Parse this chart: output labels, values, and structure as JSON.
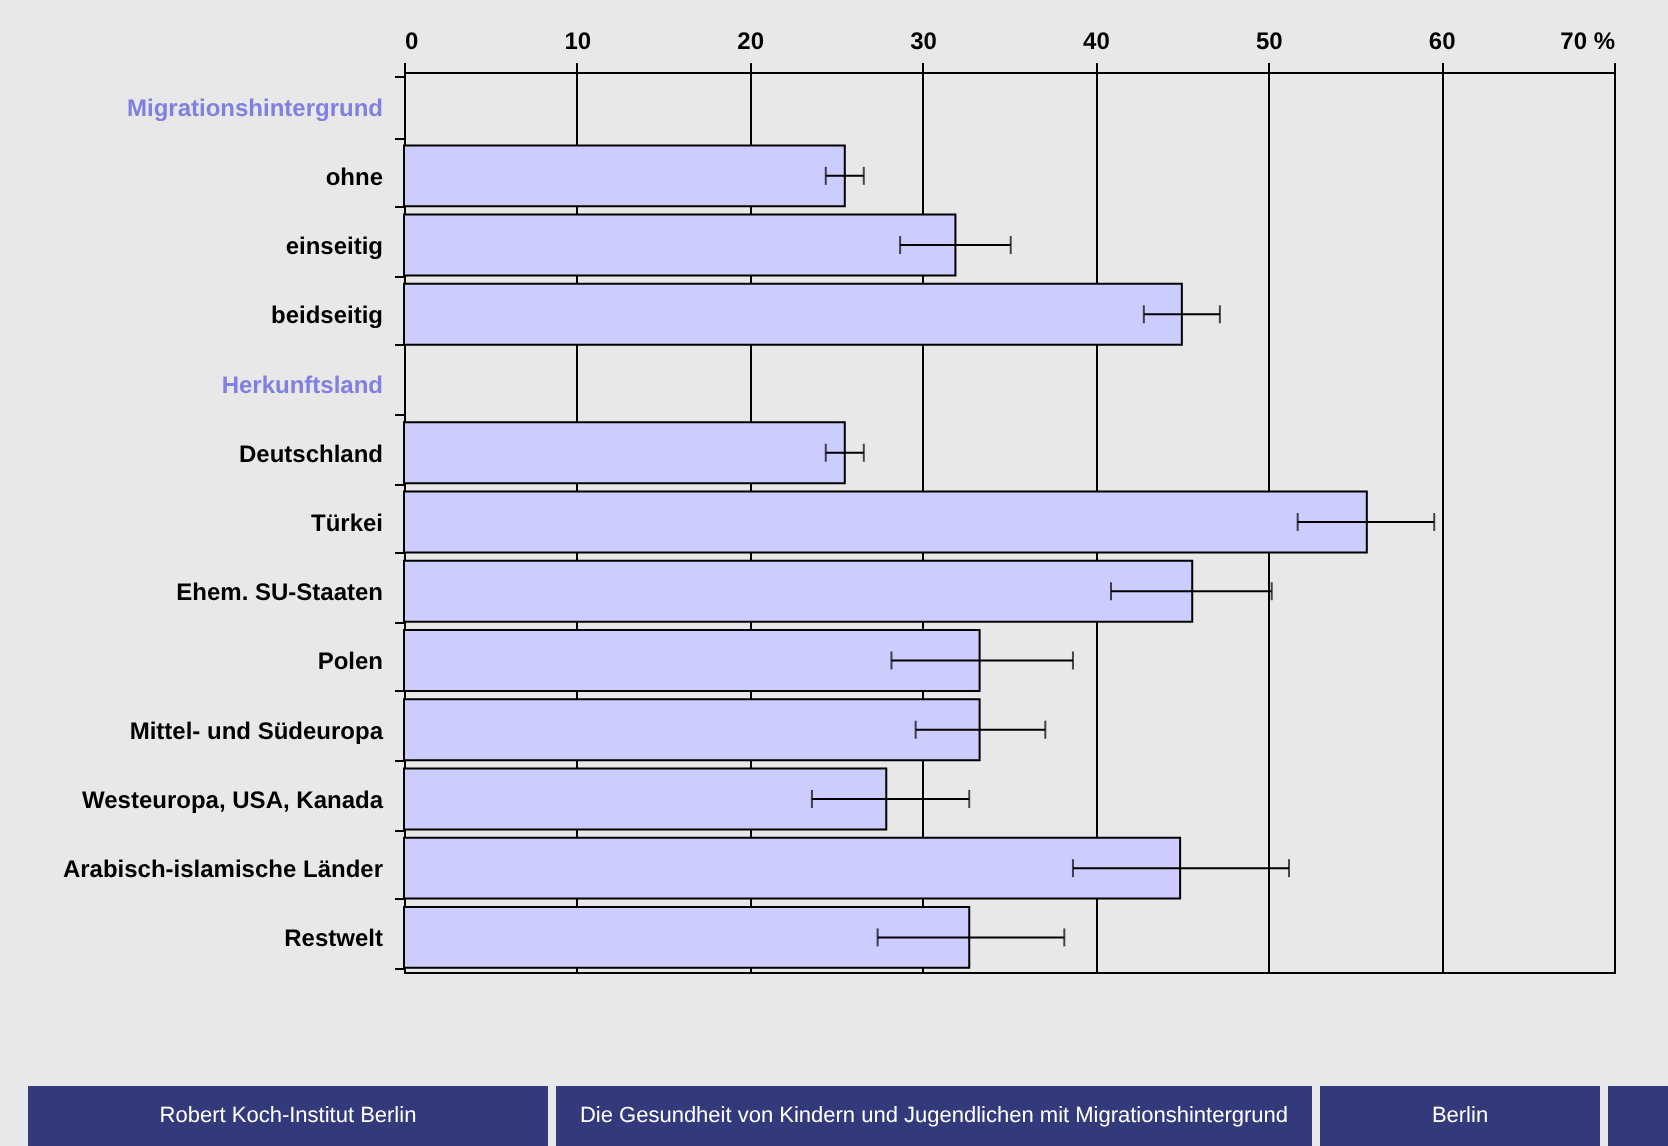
{
  "chart_data": {
    "type": "bar",
    "orientation": "horizontal",
    "categories": [
      "Migrationshintergrund",
      "ohne",
      "einseitig",
      "beidseitig",
      "Herkunftsland",
      "Deutschland",
      "Türkei",
      "Ehem. SU-Staaten",
      "Polen",
      "Mittel- und Südeuropa",
      "Westeuropa, USA, Kanada",
      "Arabisch-islamische Länder",
      "Restwelt"
    ],
    "series": [
      {
        "color": "#ccccff",
        "values": [
          null,
          25.5,
          31.9,
          45.0,
          null,
          25.5,
          55.7,
          45.6,
          33.3,
          33.3,
          27.9,
          44.9,
          32.7
        ],
        "errors": [
          null,
          [
            24.4,
            26.6
          ],
          [
            28.7,
            35.1
          ],
          [
            42.8,
            47.2
          ],
          null,
          [
            24.4,
            26.6
          ],
          [
            51.7,
            59.6
          ],
          [
            40.9,
            50.2
          ],
          [
            28.2,
            38.7
          ],
          [
            29.6,
            37.1
          ],
          [
            23.6,
            32.7
          ],
          [
            38.7,
            51.2
          ],
          [
            27.4,
            38.2
          ]
        ]
      }
    ],
    "xlim": [
      0,
      70
    ],
    "xticks": [
      0,
      10,
      20,
      30,
      40,
      50,
      60,
      {
        "value": 70,
        "label": "70  %"
      }
    ],
    "grid": "x",
    "annotations": [
      "Robert Koch-Institut Berlin",
      "Die Gesundheit von Kindern und Jugendlichen mit Migrationshintergrund",
      "Berlin"
    ]
  }
}
